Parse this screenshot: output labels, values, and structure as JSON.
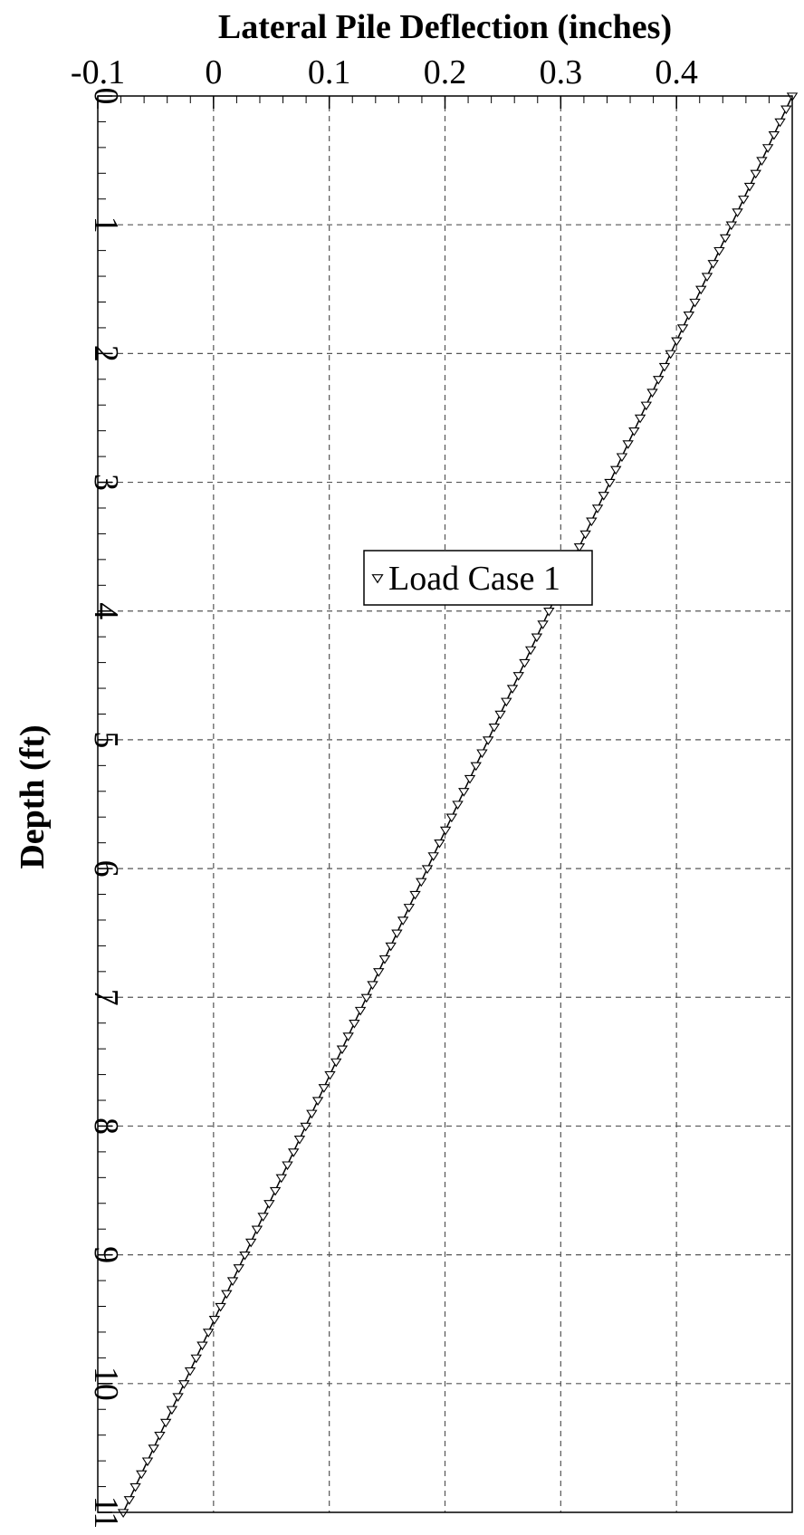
{
  "chart_data": {
    "type": "line",
    "title": "",
    "xlabel": "Lateral Pile Deflection (inches)",
    "ylabel": "Depth (ft)",
    "xlim": [
      -0.1,
      0.5
    ],
    "ylim": [
      0,
      11
    ],
    "y_inverted": true,
    "x_axis_position": "top",
    "xticks": [
      -0.1,
      0,
      0.1,
      0.2,
      0.3,
      0.4
    ],
    "xtick_labels": [
      "-0.1",
      "0",
      "0.1",
      "0.2",
      "0.3",
      "0.4"
    ],
    "yticks": [
      0,
      1,
      2,
      3,
      4,
      5,
      6,
      7,
      8,
      9,
      10,
      11
    ],
    "ytick_labels": [
      "0",
      "1",
      "2",
      "3",
      "4",
      "5",
      "6",
      "7",
      "8",
      "9",
      "10",
      "11"
    ],
    "grid": true,
    "grid_style": "dashed",
    "legend_position": "center",
    "marker": "triangle-down",
    "line_color": "#000000",
    "series": [
      {
        "name": "Load Case 1",
        "points_from": [
          0,
          0.5
        ],
        "points_to": [
          11,
          -0.078
        ],
        "point_count": 111,
        "depth_step": 0.1
      }
    ]
  }
}
